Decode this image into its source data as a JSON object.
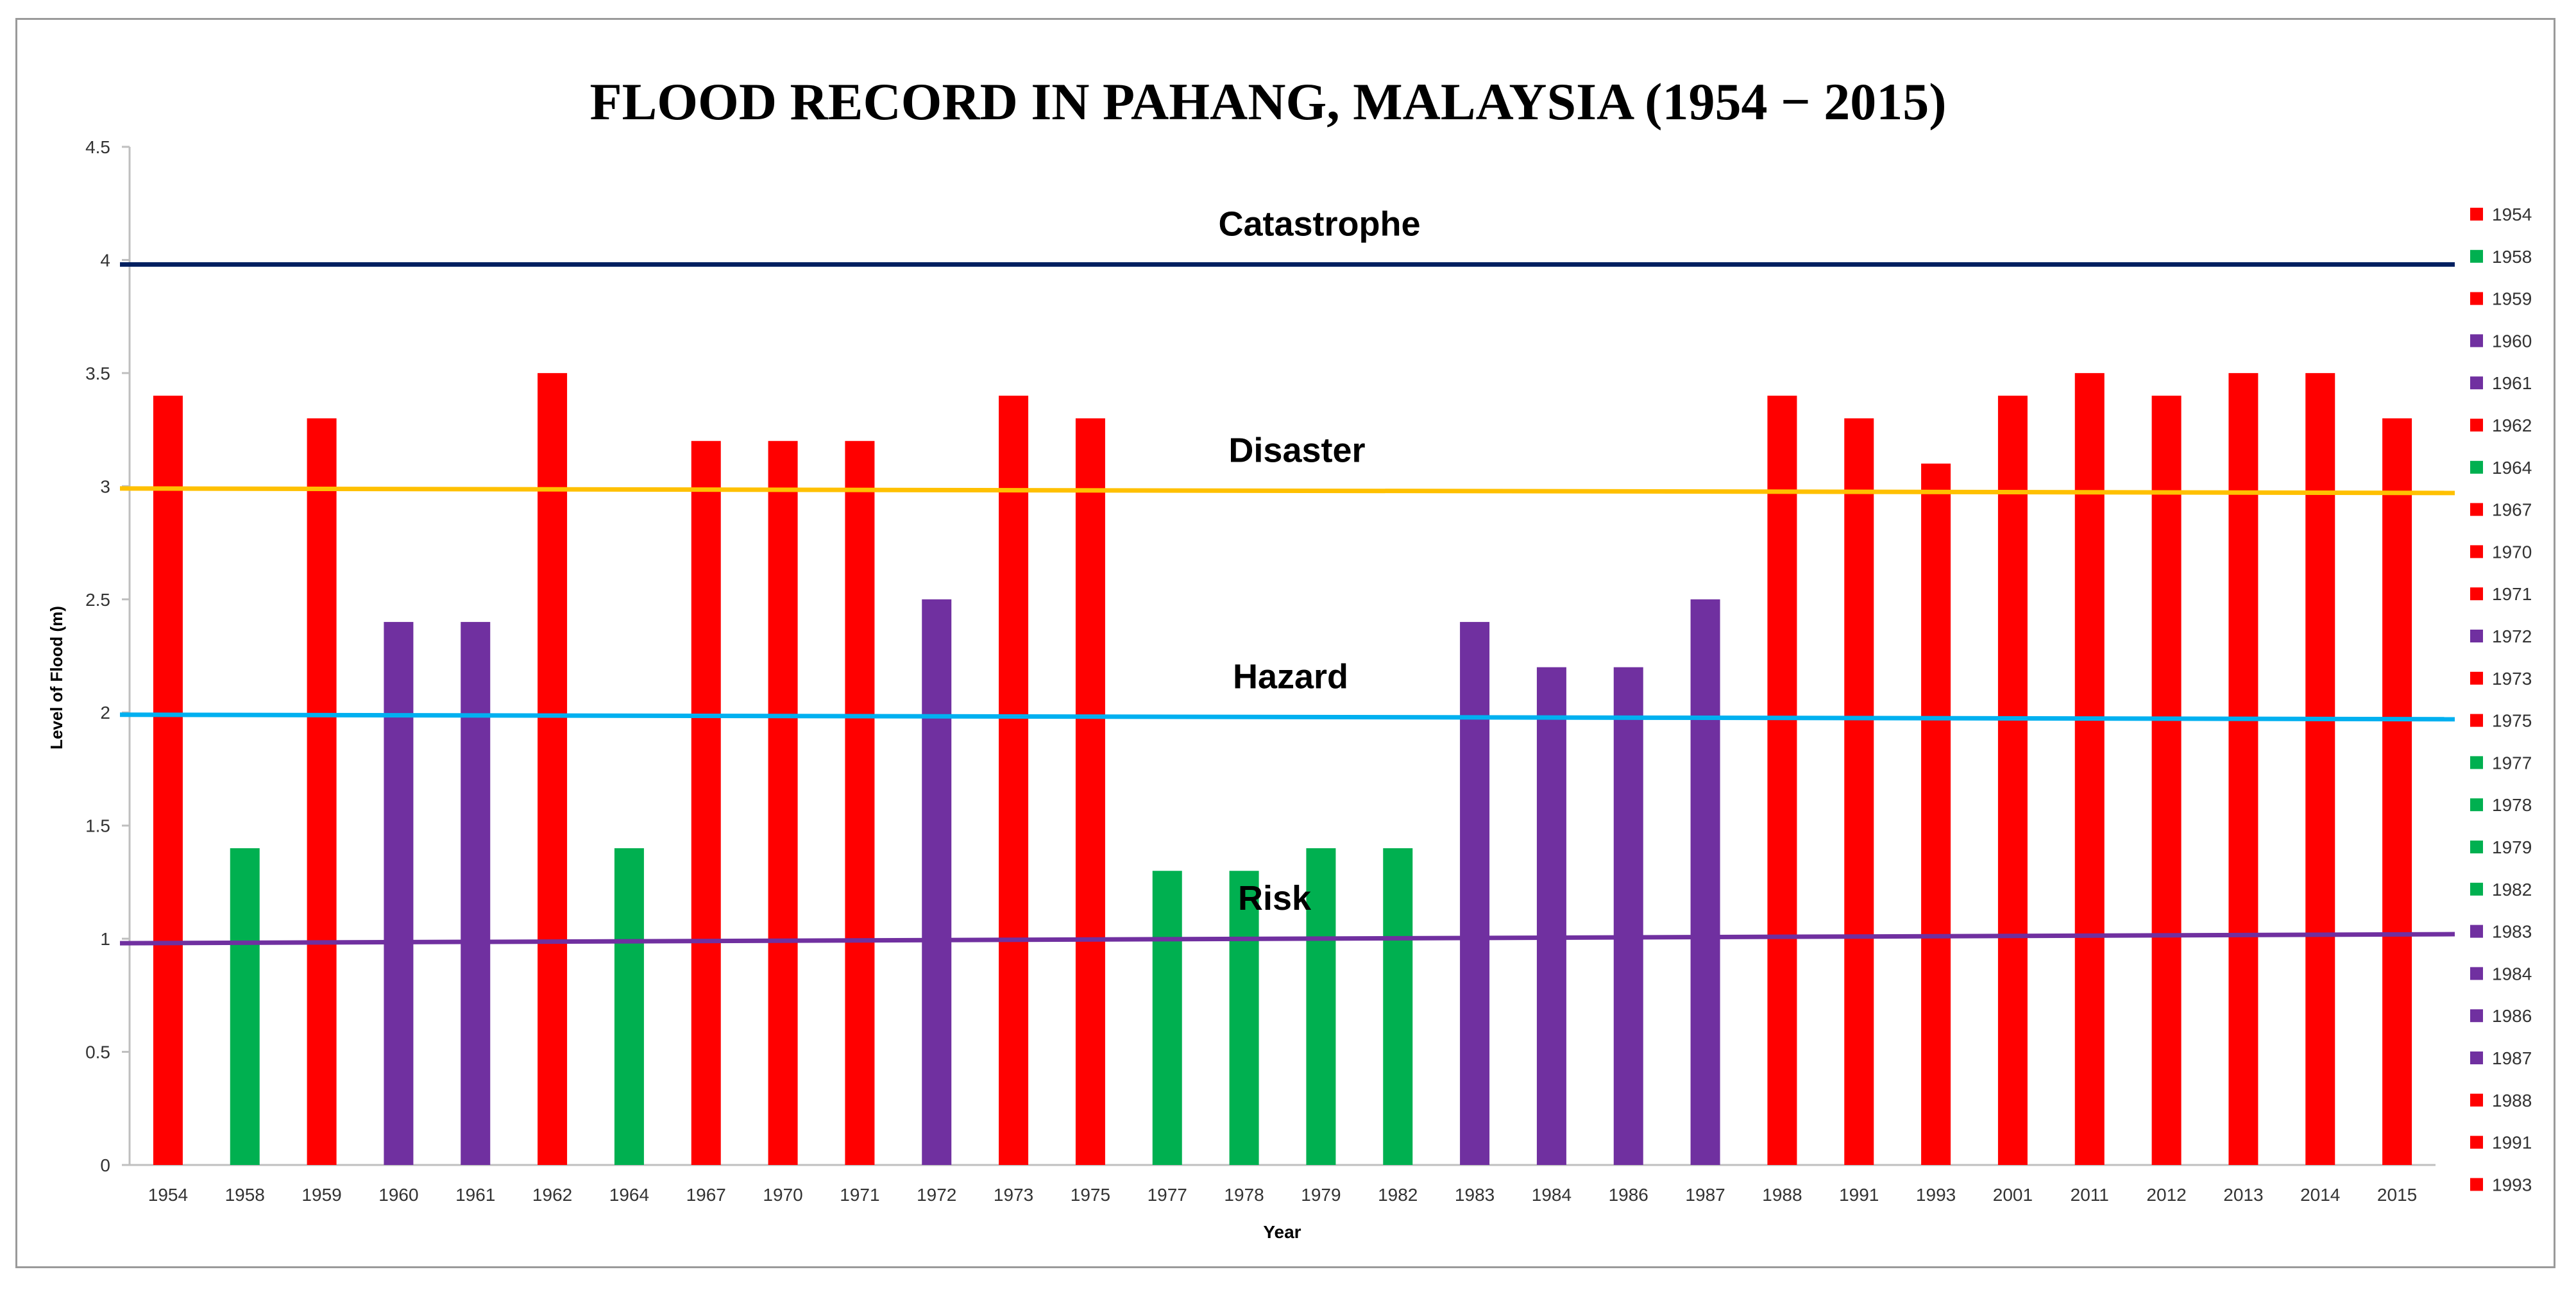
{
  "chart_data": {
    "type": "bar",
    "title": "FLOOD RECORD IN PAHANG, MALAYSIA (1954 − 2015)",
    "xlabel": "Year",
    "ylabel": "Level of Flood (m)",
    "ylim": [
      0,
      4.5
    ],
    "yticks": [
      "0",
      "0.5",
      "1",
      "1.5",
      "2",
      "2.5",
      "3",
      "3.5",
      "4",
      "4.5"
    ],
    "grid": false,
    "legend_position": "right",
    "colors": {
      "red": "#ff0000",
      "green": "#00b050",
      "purple": "#7030a0"
    },
    "categories": [
      "1954",
      "1958",
      "1959",
      "1960",
      "1961",
      "1962",
      "1964",
      "1967",
      "1970",
      "1971",
      "1972",
      "1973",
      "1975",
      "1977",
      "1978",
      "1979",
      "1982",
      "1983",
      "1984",
      "1986",
      "1987",
      "1988",
      "1991",
      "1993",
      "2001",
      "2011",
      "2012",
      "2013",
      "2014",
      "2015"
    ],
    "values": [
      3.4,
      1.4,
      3.3,
      2.4,
      2.4,
      3.5,
      1.4,
      3.2,
      3.2,
      3.2,
      2.5,
      3.4,
      3.3,
      1.3,
      1.3,
      1.4,
      1.4,
      2.4,
      2.2,
      2.2,
      2.5,
      3.4,
      3.3,
      3.1,
      3.4,
      3.5,
      3.4,
      3.5,
      3.5,
      3.3
    ],
    "bar_colors": [
      "red",
      "green",
      "red",
      "purple",
      "purple",
      "red",
      "green",
      "red",
      "red",
      "red",
      "purple",
      "red",
      "red",
      "green",
      "green",
      "green",
      "green",
      "purple",
      "purple",
      "purple",
      "purple",
      "red",
      "red",
      "red",
      "red",
      "red",
      "red",
      "red",
      "red",
      "red"
    ],
    "legend_entries": [
      "1954",
      "1958",
      "1959",
      "1960",
      "1961",
      "1962",
      "1964",
      "1967",
      "1970",
      "1971",
      "1972",
      "1973",
      "1975",
      "1977",
      "1978",
      "1979",
      "1982",
      "1983",
      "1984",
      "1986",
      "1987",
      "1988",
      "1991",
      "1993"
    ],
    "legend_colors": [
      "red",
      "green",
      "red",
      "purple",
      "purple",
      "red",
      "green",
      "red",
      "red",
      "red",
      "purple",
      "red",
      "red",
      "green",
      "green",
      "green",
      "green",
      "purple",
      "purple",
      "purple",
      "purple",
      "red",
      "red",
      "red"
    ],
    "thresholds": [
      {
        "label": "Catastrophe",
        "y_start": 3.98,
        "y_end": 3.98,
        "color": "#002060"
      },
      {
        "label": "Disaster",
        "y_start": 2.99,
        "y_end": 2.97,
        "color": "#ffc000"
      },
      {
        "label": "Hazard",
        "y_start": 1.99,
        "y_end": 1.97,
        "color": "#00b0f0"
      },
      {
        "label": "Risk",
        "y_start": 0.98,
        "y_end": 1.02,
        "color": "#7030a0"
      }
    ]
  }
}
